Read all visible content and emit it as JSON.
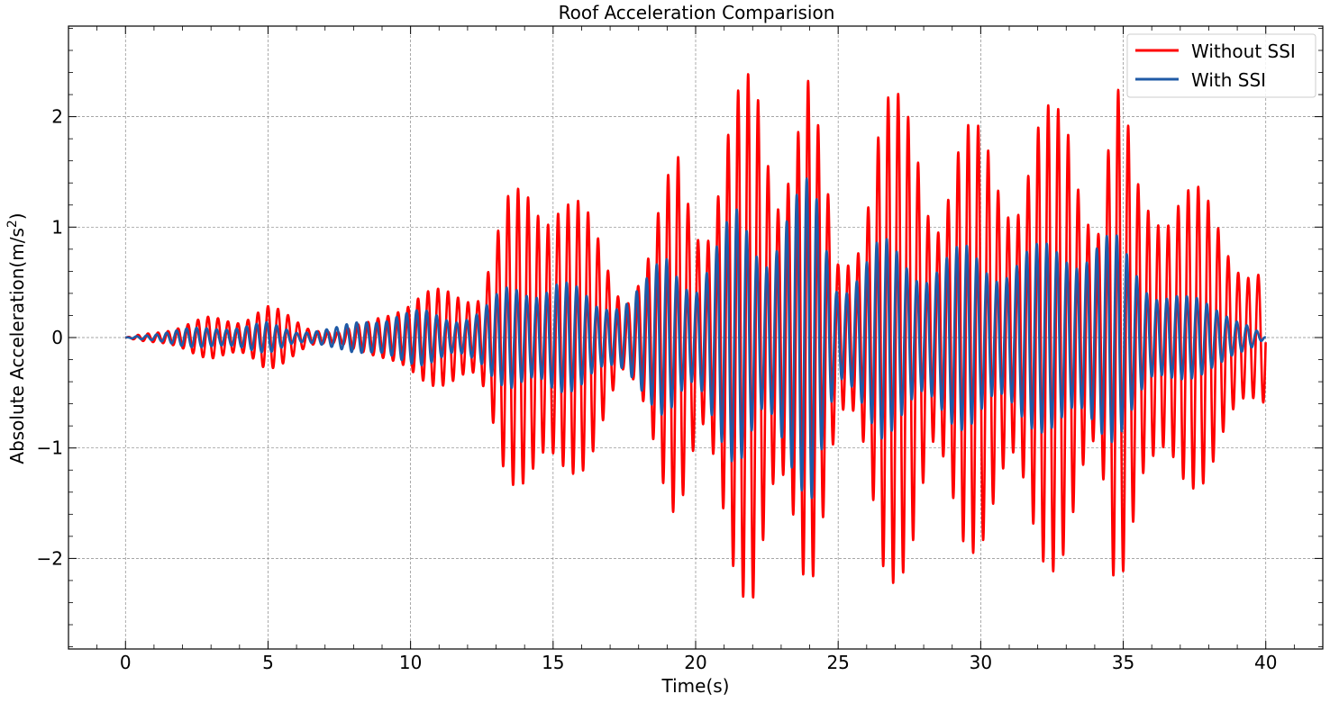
{
  "chart_data": {
    "type": "line",
    "title": "Roof Acceleration Comparision",
    "xlabel": "Time(s)",
    "ylabel_main": "Absolute Acceleration(m/s",
    "ylabel_sup": "2",
    "ylabel_close": ")",
    "xlim": [
      -2,
      42
    ],
    "ylim": [
      -2.82,
      2.82
    ],
    "xticks": [
      0,
      5,
      10,
      15,
      20,
      25,
      30,
      35,
      40
    ],
    "xtick_labels": [
      "0",
      "5",
      "10",
      "15",
      "20",
      "25",
      "30",
      "35",
      "40"
    ],
    "yticks": [
      -2,
      -1,
      0,
      1,
      2
    ],
    "ytick_labels": [
      "−2",
      "−1",
      "0",
      "1",
      "2"
    ],
    "grid": true,
    "legend_position": "top-right",
    "series": [
      {
        "name": "Without SSI",
        "color": "#ff0000",
        "envelope_t": [
          0,
          1,
          2,
          3,
          4,
          4.9,
          5.5,
          6.5,
          7.5,
          8.5,
          9.5,
          10.5,
          11.5,
          12.4,
          13.3,
          14.2,
          15.2,
          16.5,
          17.5,
          18.3,
          19.4,
          20.3,
          21.2,
          22.1,
          22.9,
          23.9,
          25.0,
          25.6,
          26.5,
          27.7,
          28.4,
          29.3,
          30.2,
          31.2,
          32.0,
          33.1,
          34.1,
          34.7,
          35.6,
          37.0,
          38.6,
          40.0
        ],
        "envelope_a": [
          0.0,
          0.06,
          0.12,
          0.2,
          0.2,
          0.32,
          0.24,
          0.1,
          0.06,
          0.15,
          0.35,
          0.42,
          0.48,
          0.5,
          1.25,
          1.52,
          1.64,
          1.0,
          0.42,
          0.8,
          1.82,
          1.2,
          2.1,
          2.58,
          1.8,
          2.56,
          0.8,
          1.05,
          2.28,
          2.15,
          1.4,
          1.95,
          1.95,
          1.6,
          2.06,
          2.2,
          1.3,
          2.5,
          1.4,
          1.65,
          1.0,
          0.68
        ],
        "dominant_frequency_hz": 2.85
      },
      {
        "name": "With SSI",
        "color": "#1f5aa6",
        "envelope_t": [
          0,
          2,
          4,
          5,
          6,
          7.5,
          8.5,
          9.5,
          10.5,
          11.5,
          12.5,
          13.5,
          15.0,
          16.5,
          17.6,
          18.3,
          19.0,
          20.0,
          21.5,
          22.4,
          23.2,
          24.1,
          25.0,
          26.5,
          28.0,
          29.5,
          30.5,
          32.0,
          33.0,
          34.7,
          36.0,
          37.2,
          38.5,
          40.0
        ],
        "envelope_a": [
          0.0,
          0.08,
          0.12,
          0.14,
          0.06,
          0.1,
          0.18,
          0.25,
          0.25,
          0.2,
          0.28,
          0.5,
          0.6,
          0.35,
          0.42,
          0.55,
          0.8,
          0.6,
          1.22,
          0.95,
          1.3,
          1.48,
          0.55,
          0.92,
          0.75,
          0.85,
          0.78,
          0.85,
          0.98,
          0.95,
          0.55,
          0.38,
          0.32,
          0.0
        ],
        "dominant_frequency_hz": 2.85
      }
    ]
  }
}
